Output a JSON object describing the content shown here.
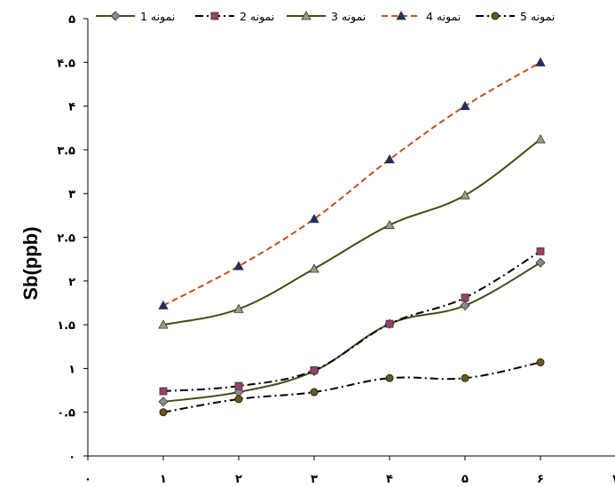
{
  "chart_data": {
    "type": "line",
    "ylabel": "Sb(ppb)",
    "x": [
      1,
      2,
      3,
      4,
      5,
      6
    ],
    "xlim": [
      0,
      7
    ],
    "ylim": [
      0,
      5
    ],
    "x_tick_labels": [
      "۰",
      "۱",
      "۲",
      "۳",
      "۴",
      "۵",
      "۶",
      "۷"
    ],
    "y_tick_labels": [
      "۰",
      "۰.۵",
      "۱",
      "۱.۵",
      "۲",
      "۲.۵",
      "۳",
      "۳.۵",
      "۴",
      "۴.۵",
      "۵"
    ],
    "legend_position": "top",
    "grid": false,
    "series": [
      {
        "name": "نمونه 1",
        "values": [
          0.62,
          0.73,
          0.97,
          1.51,
          1.72,
          2.21
        ],
        "line_color": "#4a4a14",
        "marker": "diamond",
        "marker_color": "#8a8a8a",
        "dash": "solid"
      },
      {
        "name": "نمونه 2",
        "values": [
          0.74,
          0.8,
          0.98,
          1.51,
          1.81,
          2.34
        ],
        "line_color": "#000000",
        "marker": "square",
        "marker_color": "#9c3f6e",
        "dash": "dashdot"
      },
      {
        "name": "نمونه 3",
        "values": [
          1.5,
          1.68,
          2.14,
          2.64,
          2.98,
          3.62
        ],
        "line_color": "#4a4a14",
        "marker": "triangle",
        "marker_color": "#9aa07a",
        "dash": "solid"
      },
      {
        "name": "نمونه 4",
        "values": [
          1.72,
          2.17,
          2.71,
          3.39,
          4.0,
          4.5
        ],
        "line_color": "#c0501f",
        "marker": "triangle",
        "marker_color": "#1f2d6e",
        "dash": "dashed"
      },
      {
        "name": "نمونه 5",
        "values": [
          0.5,
          0.65,
          0.73,
          0.89,
          0.89,
          1.07
        ],
        "line_color": "#000000",
        "marker": "circle",
        "marker_color": "#6b5a14",
        "dash": "dashdot"
      }
    ]
  }
}
